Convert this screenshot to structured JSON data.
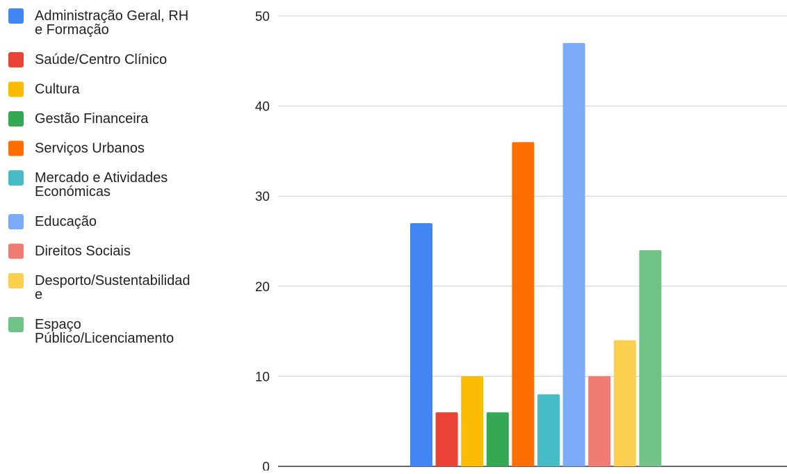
{
  "chart_data": {
    "type": "bar",
    "title": "",
    "xlabel": "",
    "ylabel": "",
    "ylim": [
      0,
      50
    ],
    "y_ticks": [
      0,
      10,
      20,
      30,
      40,
      50
    ],
    "grid": true,
    "legend_position": "left",
    "series": [
      {
        "name": "Administração Geral, RH e Formação",
        "value": 27,
        "color": "#4285F4"
      },
      {
        "name": "Saúde/Centro Clínico",
        "value": 6,
        "color": "#EA4335"
      },
      {
        "name": "Cultura",
        "value": 10,
        "color": "#FBBC04"
      },
      {
        "name": "Gestão Financeira",
        "value": 6,
        "color": "#34A853"
      },
      {
        "name": "Serviços Urbanos",
        "value": 36,
        "color": "#FF6D01"
      },
      {
        "name": "Mercado e Atividades Económicas",
        "value": 8,
        "color": "#46BDC6"
      },
      {
        "name": "Educação",
        "value": 47,
        "color": "#7BAAF7"
      },
      {
        "name": "Direitos Sociais",
        "value": 10,
        "color": "#F07B72"
      },
      {
        "name": "Desporto/Sustentabilidade",
        "value": 14,
        "color": "#FCD04F"
      },
      {
        "name": "Espaço Público/Licenciamento",
        "value": 24,
        "color": "#71C287"
      }
    ]
  }
}
